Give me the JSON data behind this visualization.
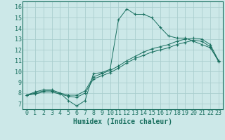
{
  "xlabel": "Humidex (Indice chaleur)",
  "bg_color": "#cce8e8",
  "line_color": "#1a7060",
  "grid_color": "#aacece",
  "xlim": [
    -0.5,
    23.5
  ],
  "ylim": [
    6.5,
    16.5
  ],
  "xticks": [
    0,
    1,
    2,
    3,
    4,
    5,
    6,
    7,
    8,
    9,
    10,
    11,
    12,
    13,
    14,
    15,
    16,
    17,
    18,
    19,
    20,
    21,
    22,
    23
  ],
  "yticks": [
    7,
    8,
    9,
    10,
    11,
    12,
    13,
    14,
    15,
    16
  ],
  "line1_x": [
    0,
    1,
    2,
    3,
    4,
    5,
    6,
    7,
    8,
    9,
    10,
    11,
    12,
    13,
    14,
    15,
    16,
    17,
    18,
    19,
    20,
    21,
    22,
    23
  ],
  "line1_y": [
    7.8,
    8.1,
    8.3,
    8.3,
    8.0,
    7.3,
    6.8,
    7.3,
    9.8,
    9.9,
    10.2,
    14.8,
    15.8,
    15.3,
    15.3,
    15.0,
    14.1,
    13.3,
    13.1,
    13.1,
    12.8,
    12.5,
    12.2,
    11.0
  ],
  "line2_x": [
    0,
    1,
    2,
    3,
    4,
    5,
    6,
    7,
    8,
    9,
    10,
    11,
    12,
    13,
    14,
    15,
    16,
    17,
    18,
    19,
    20,
    21,
    22,
    23
  ],
  "line2_y": [
    7.8,
    8.0,
    8.2,
    8.2,
    8.0,
    7.8,
    7.8,
    8.2,
    9.5,
    9.8,
    10.1,
    10.5,
    11.0,
    11.4,
    11.8,
    12.1,
    12.3,
    12.5,
    12.8,
    13.0,
    13.1,
    13.0,
    12.5,
    11.0
  ],
  "line3_x": [
    0,
    1,
    2,
    3,
    4,
    5,
    6,
    7,
    8,
    9,
    10,
    11,
    12,
    13,
    14,
    15,
    16,
    17,
    18,
    19,
    20,
    21,
    22,
    23
  ],
  "line3_y": [
    7.8,
    7.9,
    8.1,
    8.1,
    7.9,
    7.7,
    7.6,
    8.0,
    9.3,
    9.6,
    9.9,
    10.3,
    10.8,
    11.2,
    11.5,
    11.8,
    12.0,
    12.2,
    12.5,
    12.7,
    12.9,
    12.8,
    12.3,
    10.9
  ],
  "xlabel_fontsize": 7,
  "tick_fontsize": 6
}
